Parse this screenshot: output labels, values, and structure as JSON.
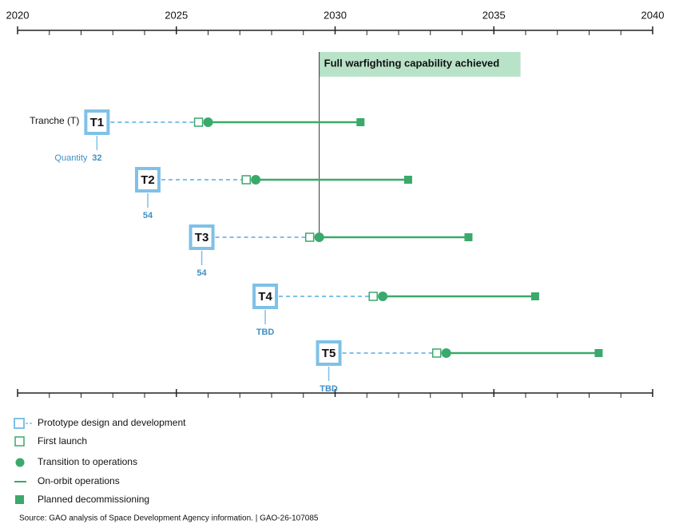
{
  "chart_data": {
    "type": "timeline",
    "xlim": [
      2020,
      2040
    ],
    "xticks": [
      2020,
      2025,
      2030,
      2035,
      2040
    ],
    "xminorticks": [
      2021,
      2022,
      2023,
      2024,
      2026,
      2027,
      2028,
      2029,
      2031,
      2032,
      2033,
      2034,
      2036,
      2037,
      2038,
      2039
    ],
    "milestone": {
      "label": "Full warfighting capability achieved",
      "x": 2029.5
    },
    "row_label": "Tranche (T)",
    "quantity_label": "Quantity",
    "tranches": [
      {
        "name": "T1",
        "quantity": 32,
        "start": 2022.5,
        "first_launch": 2025.7,
        "operations": 2026.0,
        "decommission": 2030.8
      },
      {
        "name": "T2",
        "quantity": 54,
        "start": 2024.1,
        "first_launch": 2027.2,
        "operations": 2027.5,
        "decommission": 2032.3
      },
      {
        "name": "T3",
        "quantity": 54,
        "start": 2025.8,
        "first_launch": 2029.2,
        "operations": 2029.5,
        "decommission": 2034.2
      },
      {
        "name": "T4",
        "quantity": "TBD",
        "start": 2027.8,
        "first_launch": 2031.2,
        "operations": 2031.5,
        "decommission": 2036.3
      },
      {
        "name": "T5",
        "quantity": "TBD",
        "start": 2029.8,
        "first_launch": 2033.2,
        "operations": 2033.5,
        "decommission": 2038.3
      }
    ],
    "legend": [
      "Prototype design and development",
      "First launch",
      "Transition to operations",
      "On-orbit operations",
      "Planned decommissioning"
    ],
    "colors": {
      "prototype": "#7fc1e6",
      "operations": "#3aa96b",
      "milestone": "#b9e3c9",
      "quantity": "#3f8fc4"
    },
    "source": "Source: GAO analysis of Space Development Agency information.  |  GAO-26-107085"
  }
}
